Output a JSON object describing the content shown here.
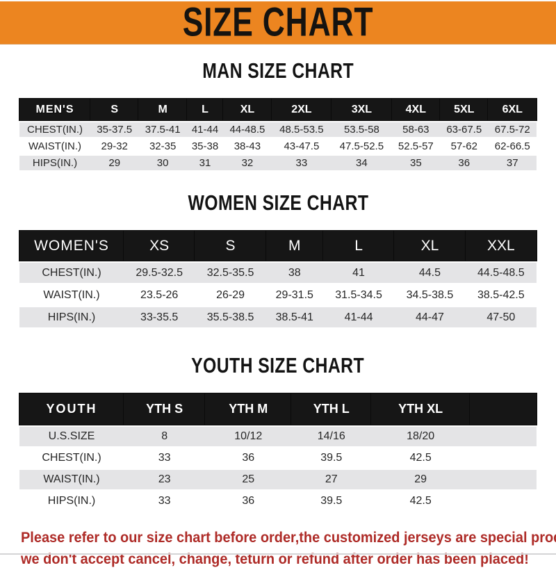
{
  "banner": {
    "title": "SIZE CHART"
  },
  "colors": {
    "banner_bg": "#EC8520",
    "header_bar": "#161616",
    "row_shade": "#E4E4E6",
    "footer_text": "#AE2B27"
  },
  "sections": [
    {
      "id": "men",
      "heading": "MAN SIZE CHART",
      "table": {
        "label": "MEN'S",
        "sizes": [
          "S",
          "M",
          "L",
          "XL",
          "2XL",
          "3XL",
          "4XL",
          "5XL",
          "6XL"
        ],
        "rows": [
          {
            "label": "CHEST(IN.)",
            "values": [
              "35-37.5",
              "37.5-41",
              "41-44",
              "44-48.5",
              "48.5-53.5",
              "53.5-58",
              "58-63",
              "63-67.5",
              "67.5-72"
            ]
          },
          {
            "label": "WAIST(IN.)",
            "values": [
              "29-32",
              "32-35",
              "35-38",
              "38-43",
              "43-47.5",
              "47.5-52.5",
              "52.5-57",
              "57-62",
              "62-66.5"
            ]
          },
          {
            "label": "HIPS(IN.)",
            "values": [
              "29",
              "30",
              "31",
              "32",
              "33",
              "34",
              "35",
              "36",
              "37"
            ]
          }
        ]
      }
    },
    {
      "id": "women",
      "heading": "WOMEN SIZE CHART",
      "table": {
        "label": "WOMEN'S",
        "sizes": [
          "XS",
          "S",
          "M",
          "L",
          "XL",
          "XXL"
        ],
        "rows": [
          {
            "label": "CHEST(IN.)",
            "values": [
              "29.5-32.5",
              "32.5-35.5",
              "38",
              "41",
              "44.5",
              "44.5-48.5"
            ]
          },
          {
            "label": "WAIST(IN.)",
            "values": [
              "23.5-26",
              "26-29",
              "29-31.5",
              "31.5-34.5",
              "34.5-38.5",
              "38.5-42.5"
            ]
          },
          {
            "label": "HIPS(IN.)",
            "values": [
              "33-35.5",
              "35.5-38.5",
              "38.5-41",
              "41-44",
              "44-47",
              "47-50"
            ]
          }
        ]
      }
    },
    {
      "id": "youth",
      "heading": "YOUTH SIZE CHART",
      "table": {
        "label": "YOUTH",
        "sizes": [
          "YTH S",
          "YTH M",
          "YTH L",
          "YTH XL"
        ],
        "rows": [
          {
            "label": "U.S.SIZE",
            "values": [
              "8",
              "10/12",
              "14/16",
              "18/20"
            ]
          },
          {
            "label": "CHEST(IN.)",
            "values": [
              "33",
              "36",
              "39.5",
              "42.5"
            ]
          },
          {
            "label": "WAIST(IN.)",
            "values": [
              "23",
              "25",
              "27",
              "29"
            ]
          },
          {
            "label": "HIPS(IN.)",
            "values": [
              "33",
              "36",
              "39.5",
              "42.5"
            ]
          }
        ]
      }
    }
  ],
  "footer": {
    "line1": "Please refer to our size chart before order,the customized jerseys are special products,",
    "line2": "we don't accept cancel, change, teturn or refund after order has been placed!"
  }
}
